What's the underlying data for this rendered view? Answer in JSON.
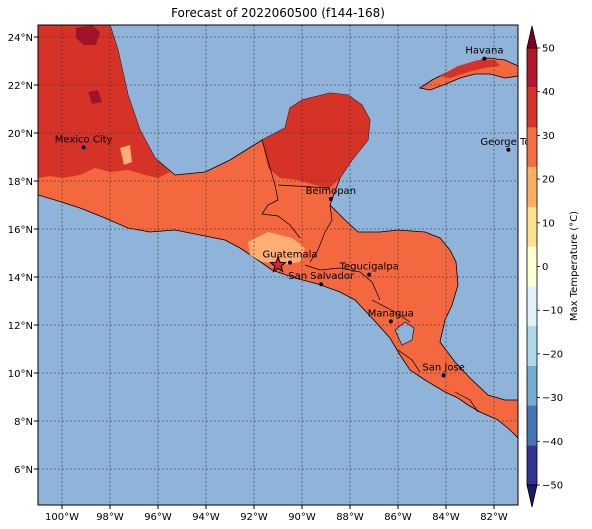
{
  "title": "Forecast of 2022060500 (f144-168)",
  "map": {
    "lon_range": [
      -101,
      -81
    ],
    "lat_range": [
      4.5,
      24.5
    ],
    "lon_ticks": [
      {
        "value": -100,
        "label": "100°W"
      },
      {
        "value": -98,
        "label": "98°W"
      },
      {
        "value": -96,
        "label": "96°W"
      },
      {
        "value": -94,
        "label": "94°W"
      },
      {
        "value": -92,
        "label": "92°W"
      },
      {
        "value": -90,
        "label": "90°W"
      },
      {
        "value": -88,
        "label": "88°W"
      },
      {
        "value": -86,
        "label": "86°W"
      },
      {
        "value": -84,
        "label": "84°W"
      },
      {
        "value": -82,
        "label": "82°W"
      }
    ],
    "lat_ticks": [
      {
        "value": 6,
        "label": "6°N"
      },
      {
        "value": 8,
        "label": "8°N"
      },
      {
        "value": 10,
        "label": "10°N"
      },
      {
        "value": 12,
        "label": "12°N"
      },
      {
        "value": 14,
        "label": "14°N"
      },
      {
        "value": 16,
        "label": "16°N"
      },
      {
        "value": 18,
        "label": "18°N"
      },
      {
        "value": 20,
        "label": "20°N"
      },
      {
        "value": 22,
        "label": "22°N"
      },
      {
        "value": 24,
        "label": "24°N"
      }
    ],
    "ocean_color": "#8fb3d9",
    "gridlines": true
  },
  "cities": [
    {
      "name": "Havana",
      "lon": -82.4,
      "lat": 23.1
    },
    {
      "name": "Mexico City",
      "lon": -99.1,
      "lat": 19.4
    },
    {
      "name": "George Tov",
      "lon": -81.4,
      "lat": 19.3
    },
    {
      "name": "Belmopan",
      "lon": -88.8,
      "lat": 17.25
    },
    {
      "name": "Guatemala",
      "lon": -90.5,
      "lat": 14.6
    },
    {
      "name": "San Salvador",
      "lon": -89.2,
      "lat": 13.7
    },
    {
      "name": "Tegucigalpa",
      "lon": -87.2,
      "lat": 14.1
    },
    {
      "name": "Managua",
      "lon": -86.3,
      "lat": 12.15
    },
    {
      "name": "San Jose",
      "lon": -84.1,
      "lat": 9.9
    }
  ],
  "marker": {
    "lon": -91.0,
    "lat": 14.5,
    "symbol": "star"
  },
  "colorbar": {
    "label": "Max Temperature (°C)",
    "ticks": [
      "50",
      "40",
      "30",
      "20",
      "10",
      "0",
      "−10",
      "−20",
      "−30",
      "−40",
      "−50"
    ],
    "colors": [
      "#7f0023",
      "#b2182b",
      "#d6342a",
      "#f46d43",
      "#fdae61",
      "#fee090",
      "#ffffd4",
      "#e0f3f8",
      "#abd9e9",
      "#74add1",
      "#4575b4",
      "#313695",
      "#1a1a6e"
    ]
  }
}
